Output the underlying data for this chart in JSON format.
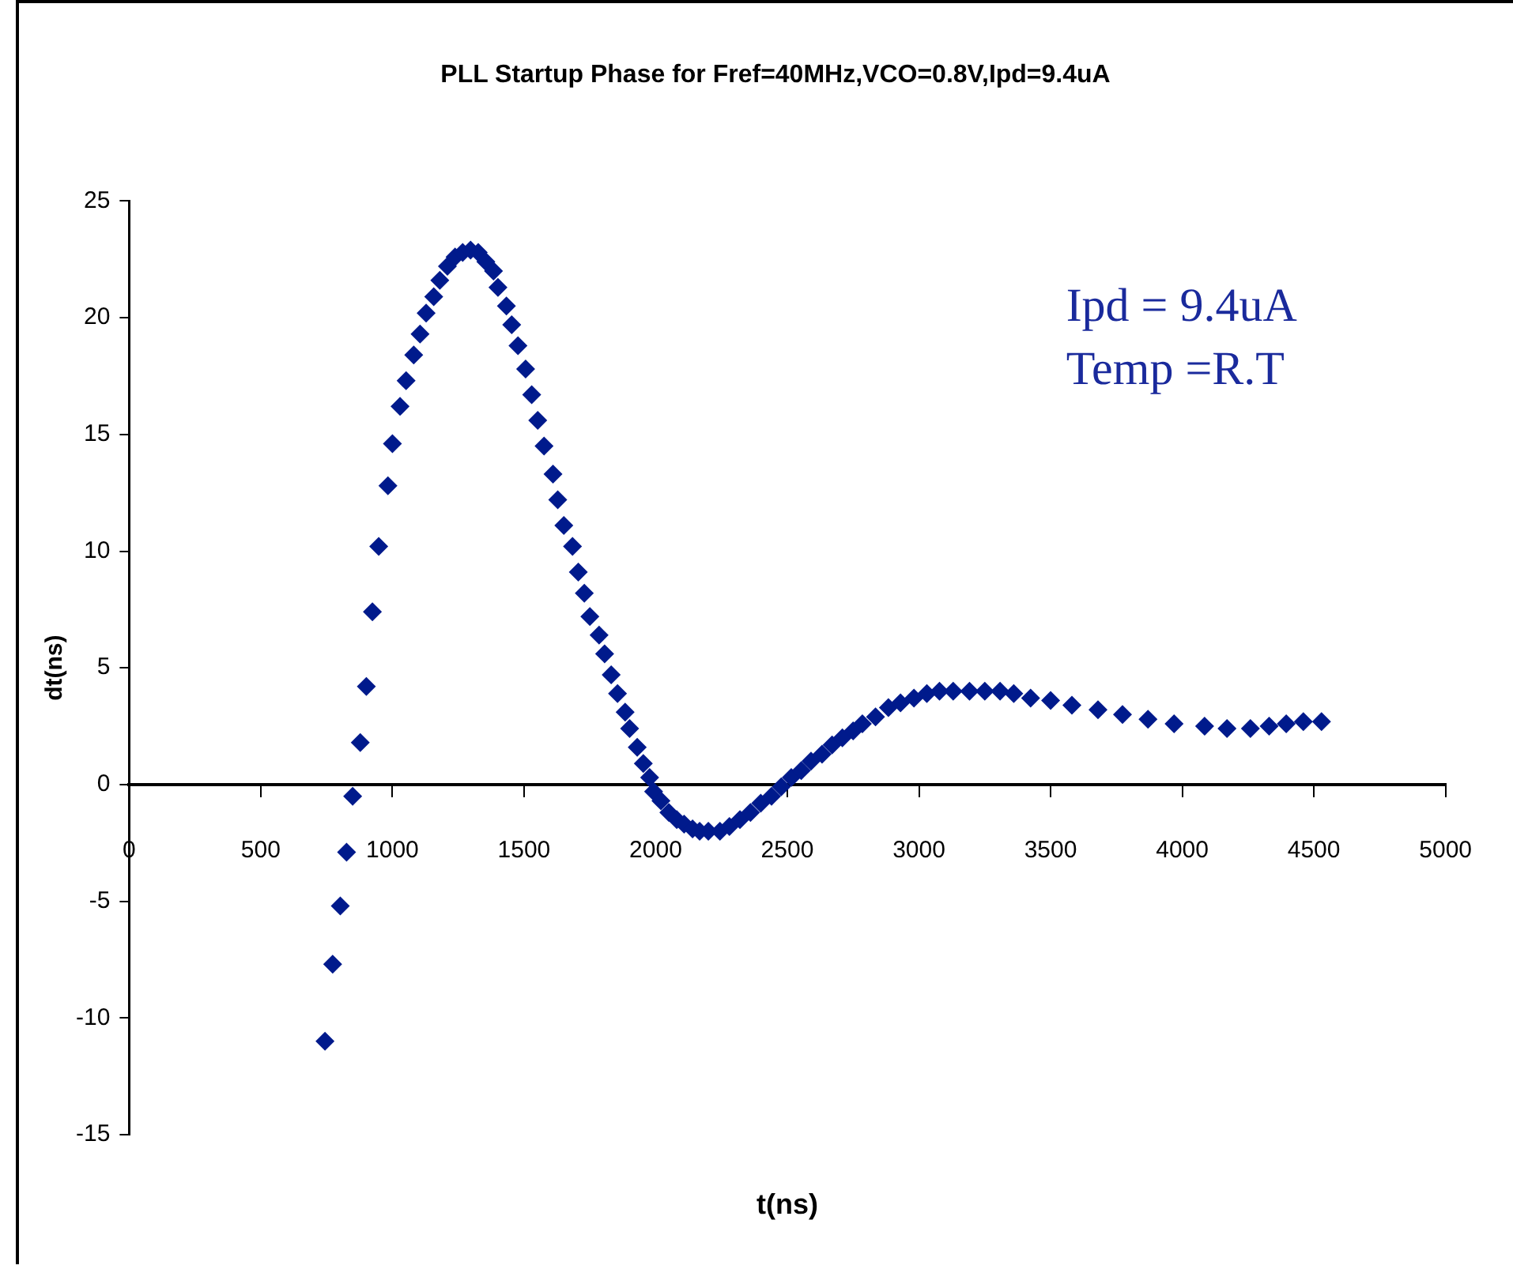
{
  "chart_data": {
    "type": "scatter",
    "title": "PLL Startup Phase for Fref=40MHz,VCO=0.8V,Ipd=9.4uA",
    "xlabel": "t(ns)",
    "ylabel": "dt(ns)",
    "annotations": [
      "Ipd = 9.4uA",
      "Temp =R.T"
    ],
    "x": [
      744,
      773,
      802,
      826,
      849,
      878,
      901,
      924,
      948,
      983,
      1000,
      1029,
      1052,
      1081,
      1105,
      1128,
      1157,
      1180,
      1209,
      1238,
      1267,
      1297,
      1326,
      1355,
      1384,
      1401,
      1433,
      1453,
      1477,
      1506,
      1529,
      1552,
      1576,
      1610,
      1628,
      1651,
      1684,
      1706,
      1729,
      1750,
      1785,
      1806,
      1831,
      1855,
      1884,
      1901,
      1930,
      1953,
      1977,
      1992,
      2020,
      2050,
      2080,
      2108,
      2140,
      2167,
      2200,
      2244,
      2280,
      2320,
      2360,
      2399,
      2440,
      2477,
      2515,
      2553,
      2590,
      2632,
      2670,
      2709,
      2750,
      2785,
      2835,
      2884,
      2930,
      2981,
      3030,
      3078,
      3130,
      3192,
      3250,
      3308,
      3360,
      3424,
      3500,
      3581,
      3680,
      3773,
      3870,
      3969,
      4085,
      4170,
      4259,
      4330,
      4395,
      4460,
      4529
    ],
    "series": [
      {
        "color": "#001a8c",
        "values": [
          -11.0,
          -7.7,
          -5.2,
          -2.9,
          -0.5,
          1.8,
          4.2,
          7.4,
          10.2,
          12.8,
          14.6,
          16.2,
          17.3,
          18.4,
          19.3,
          20.2,
          20.9,
          21.6,
          22.2,
          22.6,
          22.8,
          22.9,
          22.8,
          22.4,
          22.0,
          21.3,
          20.5,
          19.7,
          18.8,
          17.8,
          16.7,
          15.6,
          14.5,
          13.3,
          12.2,
          11.1,
          10.2,
          9.1,
          8.2,
          7.2,
          6.4,
          5.6,
          4.7,
          3.9,
          3.1,
          2.4,
          1.6,
          0.9,
          0.3,
          -0.3,
          -0.7,
          -1.2,
          -1.5,
          -1.7,
          -1.9,
          -2.0,
          -2.0,
          -2.0,
          -1.8,
          -1.5,
          -1.2,
          -0.8,
          -0.5,
          -0.1,
          0.3,
          0.6,
          1.0,
          1.3,
          1.7,
          2.0,
          2.3,
          2.6,
          2.9,
          3.3,
          3.5,
          3.7,
          3.9,
          4.0,
          4.0,
          4.0,
          4.0,
          4.0,
          3.9,
          3.7,
          3.6,
          3.4,
          3.2,
          3.0,
          2.8,
          2.6,
          2.5,
          2.4,
          2.4,
          2.5,
          2.6,
          2.7,
          2.7
        ]
      }
    ],
    "xlim": [
      0,
      5000
    ],
    "xticks": [
      0,
      500,
      1000,
      1500,
      2000,
      2500,
      3000,
      3500,
      4000,
      4500,
      5000
    ],
    "ylim": [
      -15,
      25
    ],
    "yticks": [
      -15,
      -10,
      -5,
      0,
      5,
      10,
      15,
      20,
      25
    ],
    "grid": false,
    "legend": false,
    "marker": "diamond"
  }
}
